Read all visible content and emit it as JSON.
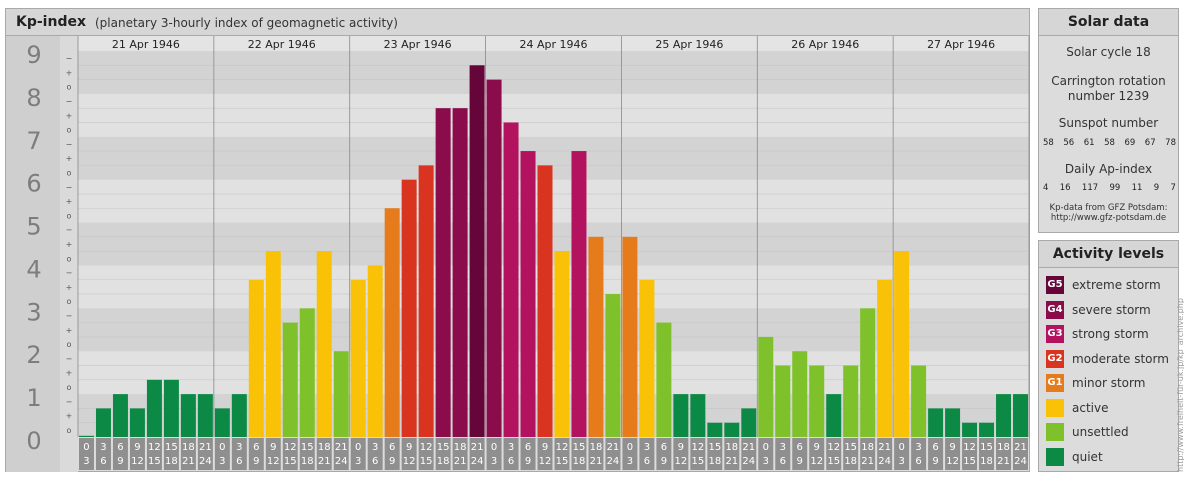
{
  "title": "Kp-index",
  "subtitle": "(planetary 3-hourly index of geomagnetic activity)",
  "chart_data": {
    "type": "bar",
    "title": "Kp-index",
    "subtitle": "(planetary 3-hourly index of geomagnetic activity)",
    "ylim": [
      0,
      9
    ],
    "y_ticks": [
      "0",
      "1",
      "2",
      "3",
      "4",
      "5",
      "6",
      "7",
      "8",
      "9"
    ],
    "sub_ticks": [
      "o",
      "+",
      "−"
    ],
    "days": [
      "21 Apr 1946",
      "22 Apr 1946",
      "23 Apr 1946",
      "24 Apr 1946",
      "25 Apr 1946",
      "26 Apr 1946",
      "27 Apr 1946"
    ],
    "hour_labels": [
      [
        "0",
        "3"
      ],
      [
        "3",
        "6"
      ],
      [
        "6",
        "9"
      ],
      [
        "9",
        "12"
      ],
      [
        "12",
        "15"
      ],
      [
        "15",
        "18"
      ],
      [
        "18",
        "21"
      ],
      [
        "21",
        "24"
      ]
    ],
    "values": [
      0.0,
      0.667,
      1.0,
      0.667,
      1.333,
      1.333,
      1.0,
      1.0,
      0.667,
      1.0,
      3.667,
      4.333,
      2.667,
      3.0,
      4.333,
      2.0,
      3.667,
      4.0,
      5.333,
      6.0,
      6.333,
      7.667,
      7.667,
      8.667,
      8.333,
      7.333,
      6.667,
      6.333,
      4.333,
      6.667,
      4.667,
      3.333,
      4.667,
      3.667,
      2.667,
      1.0,
      1.0,
      0.333,
      0.333,
      0.667,
      2.333,
      1.667,
      2.0,
      1.667,
      1.0,
      1.667,
      3.0,
      3.667,
      4.333,
      1.667,
      0.667,
      0.667,
      0.333,
      0.333,
      1.0,
      1.0
    ],
    "grid": true
  },
  "colors": {
    "quiet": "#0c8a45",
    "unsettled": "#7ec12b",
    "active": "#fac206",
    "G1": "#e57b1b",
    "G2": "#d9341f",
    "G3": "#b3125e",
    "G4": "#8a0c4a",
    "G5": "#66053a"
  },
  "solar": {
    "title": "Solar data",
    "cycle": "Solar cycle 18",
    "carrington_line1": "Carrington rotation",
    "carrington_line2": "number 1239",
    "sunspot_title": "Sunspot number",
    "sunspot_values": [
      "58",
      "56",
      "61",
      "58",
      "69",
      "67",
      "78"
    ],
    "ap_title": "Daily Ap-index",
    "ap_values": [
      "4",
      "16",
      "117",
      "99",
      "11",
      "9",
      "7"
    ],
    "source_line1": "Kp-data from GFZ Potsdam:",
    "source_line2": "http://www.gfz-potsdam.de"
  },
  "levels": {
    "title": "Activity levels",
    "items": [
      {
        "code": "G5",
        "label": "extreme storm",
        "color": "#66053a"
      },
      {
        "code": "G4",
        "label": "severe storm",
        "color": "#8a0c4a"
      },
      {
        "code": "G3",
        "label": "strong storm",
        "color": "#b3125e"
      },
      {
        "code": "G2",
        "label": "moderate storm",
        "color": "#d9341f"
      },
      {
        "code": "G1",
        "label": "minor storm",
        "color": "#e57b1b"
      },
      {
        "code": "",
        "label": "active",
        "color": "#fac206"
      },
      {
        "code": "",
        "label": "unsettled",
        "color": "#7ec12b"
      },
      {
        "code": "",
        "label": "quiet",
        "color": "#0c8a45"
      }
    ]
  },
  "watermark": "http://www.freiheit-für-uk.jp/kp_archive.php"
}
